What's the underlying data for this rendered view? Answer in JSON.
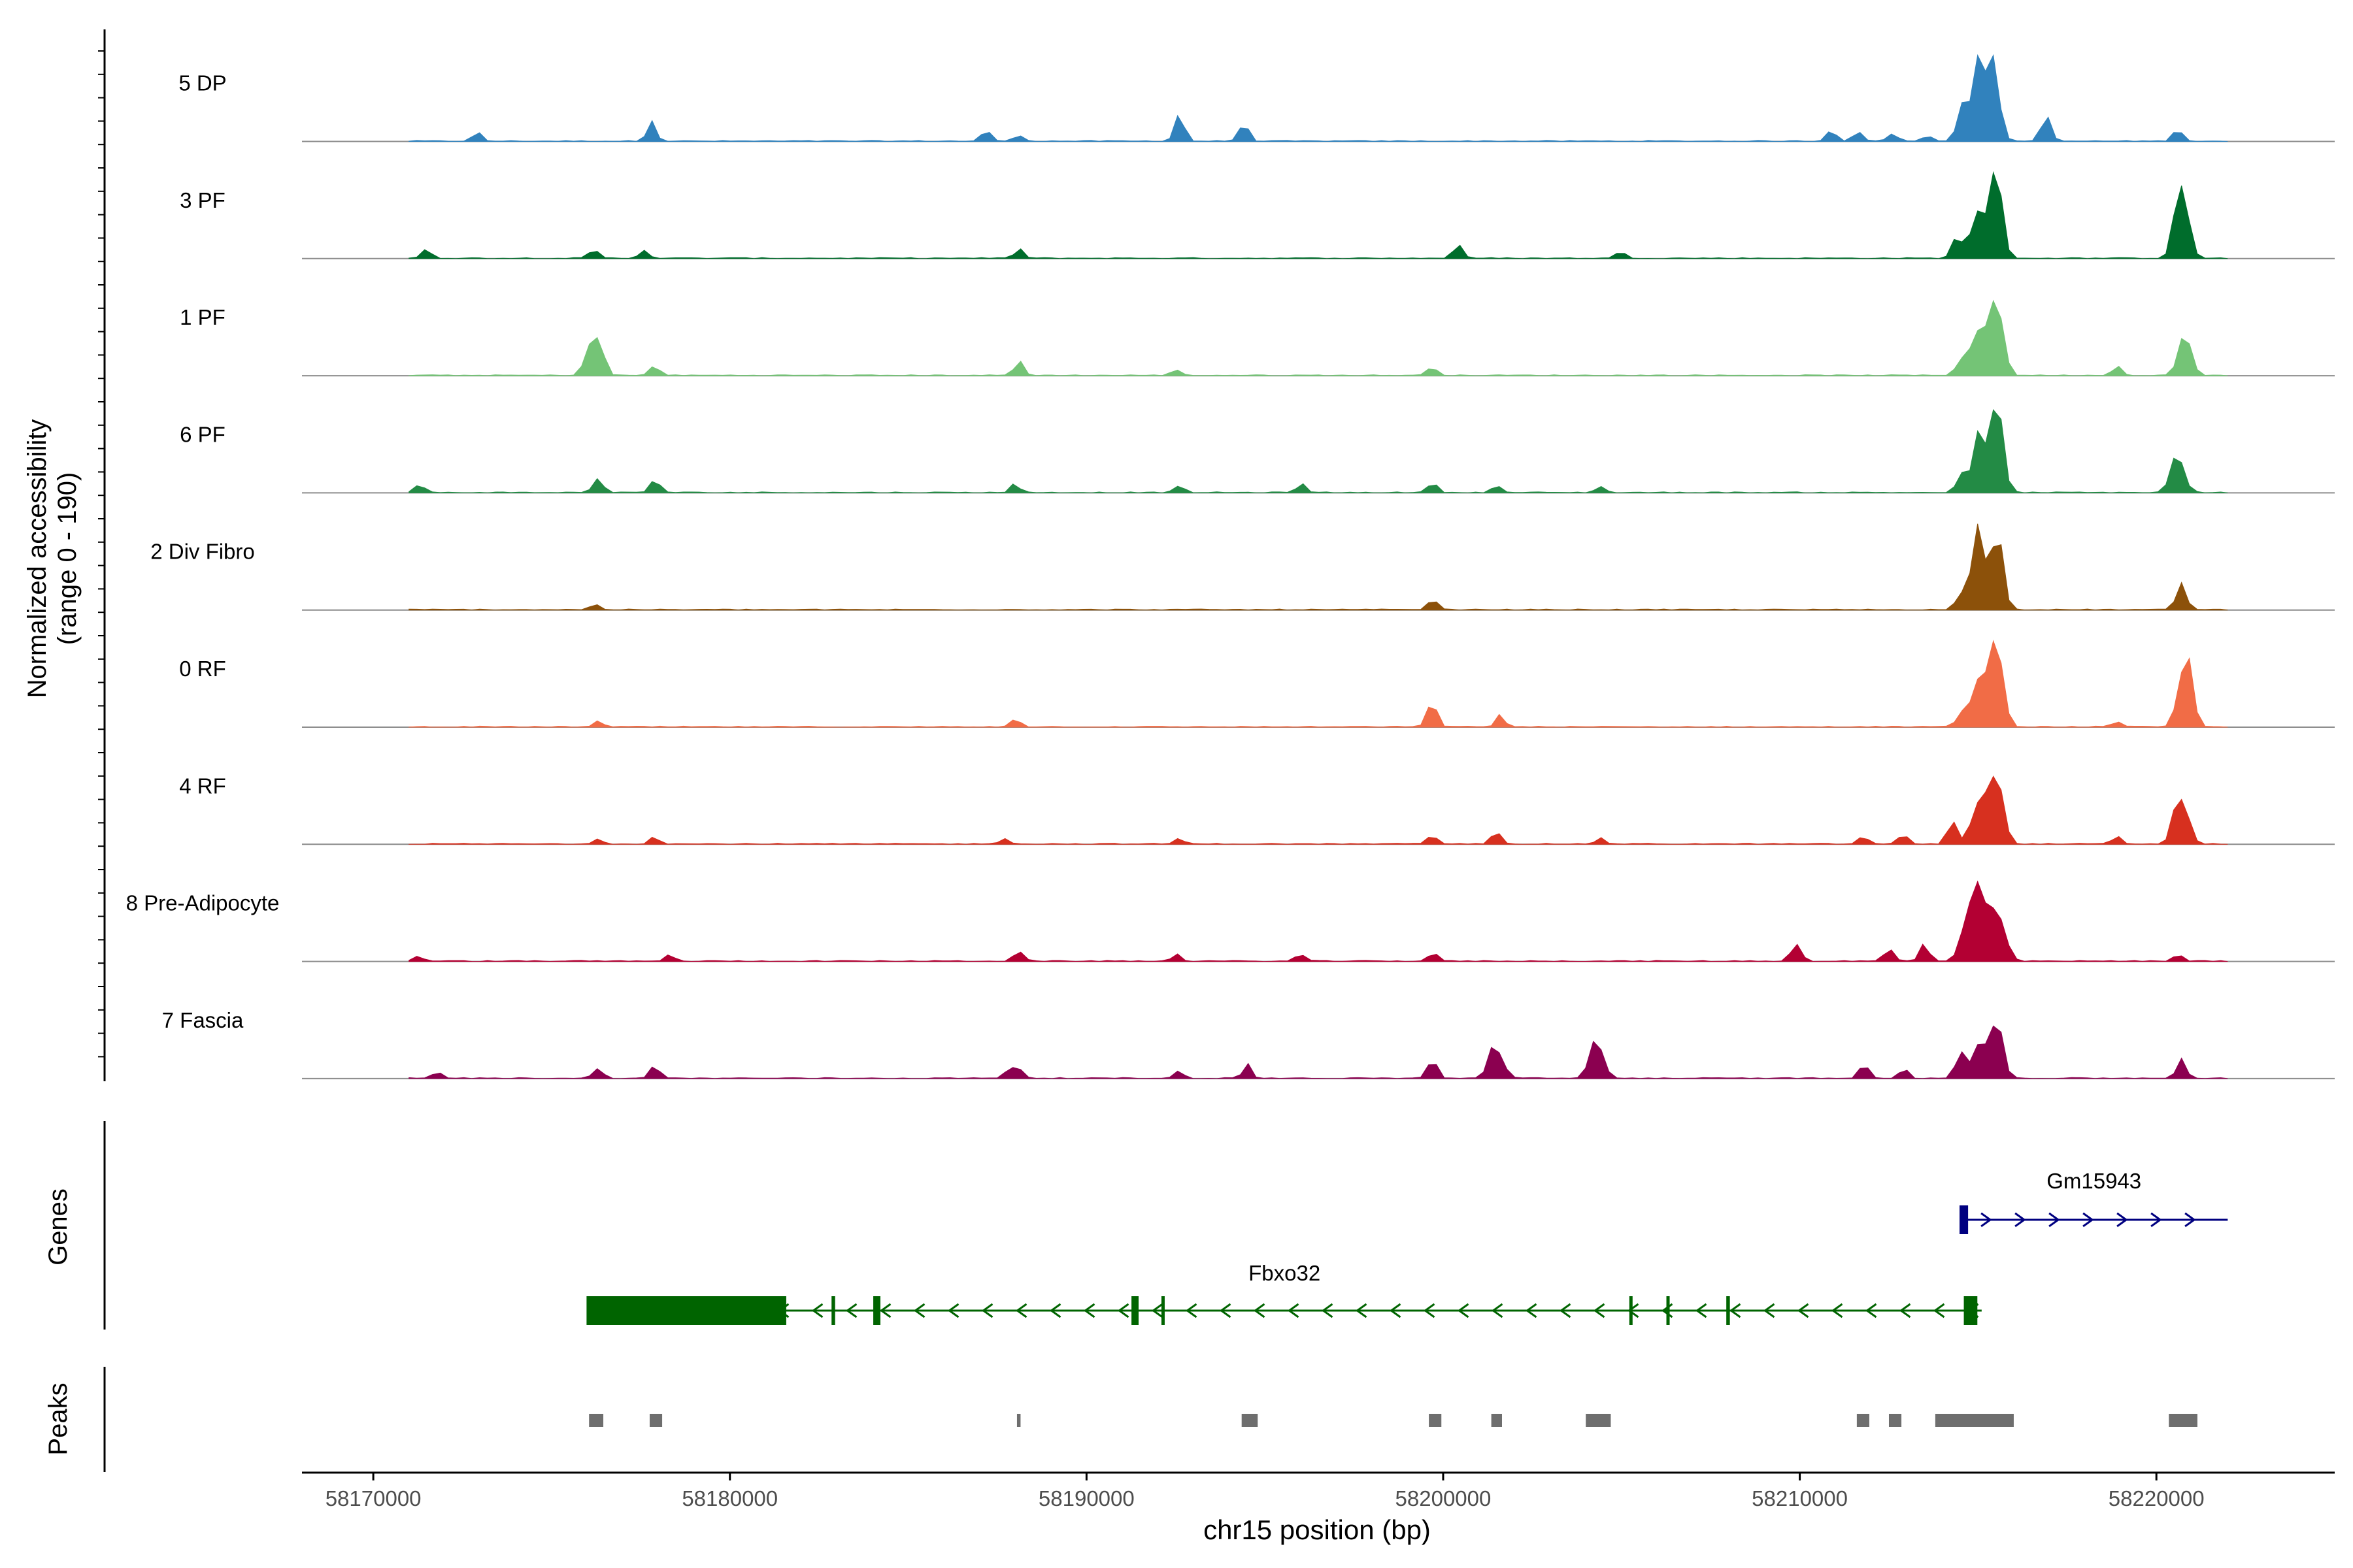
{
  "chart_data": {
    "type": "area",
    "ylabel_line1": "Normalized accessibility",
    "ylabel_line2": "(range 0 - 190)",
    "ylim": [
      0,
      190
    ],
    "xlabel": "chr15 position (bp)",
    "xlim": [
      58168000,
      58225000
    ],
    "data_xlim": [
      58171000,
      58222000
    ],
    "xticks": [
      {
        "value": 58170000,
        "label": "58170000"
      },
      {
        "value": 58180000,
        "label": "58180000"
      },
      {
        "value": 58190000,
        "label": "58190000"
      },
      {
        "value": 58200000,
        "label": "58200000"
      },
      {
        "value": 58210000,
        "label": "58210000"
      },
      {
        "value": 58220000,
        "label": "58220000"
      }
    ],
    "series": [
      {
        "name": "5 DP",
        "color": "#3182bd",
        "peaks": [
          [
            58172900,
            10
          ],
          [
            58177800,
            24
          ],
          [
            58187200,
            12
          ],
          [
            58188100,
            8
          ],
          [
            58192600,
            34
          ],
          [
            58194400,
            26
          ],
          [
            58210900,
            14
          ],
          [
            58211600,
            12
          ],
          [
            58212600,
            12
          ],
          [
            58213600,
            8
          ],
          [
            58214500,
            38
          ],
          [
            58215000,
            96
          ],
          [
            58215400,
            100
          ],
          [
            58216900,
            32
          ],
          [
            58220600,
            18
          ]
        ]
      },
      {
        "name": "3 PF",
        "color": "#006d2c",
        "peaks": [
          [
            58171500,
            10
          ],
          [
            58176200,
            12
          ],
          [
            58177600,
            10
          ],
          [
            58188100,
            10
          ],
          [
            58200400,
            16
          ],
          [
            58205000,
            8
          ],
          [
            58214400,
            26
          ],
          [
            58215000,
            72
          ],
          [
            58215500,
            100
          ],
          [
            58220700,
            86
          ]
        ]
      },
      {
        "name": "1 PF",
        "color": "#74c476",
        "peaks": [
          [
            58176200,
            66
          ],
          [
            58177900,
            12
          ],
          [
            58188100,
            16
          ],
          [
            58192500,
            6
          ],
          [
            58199700,
            10
          ],
          [
            58214500,
            18
          ],
          [
            58215000,
            66
          ],
          [
            58215500,
            100
          ],
          [
            58218900,
            10
          ],
          [
            58220800,
            44
          ]
        ]
      },
      {
        "name": "6 PF",
        "color": "#238b45",
        "peaks": [
          [
            58171300,
            10
          ],
          [
            58176300,
            18
          ],
          [
            58177900,
            16
          ],
          [
            58188000,
            10
          ],
          [
            58192600,
            8
          ],
          [
            58196000,
            10
          ],
          [
            58199700,
            14
          ],
          [
            58201500,
            10
          ],
          [
            58204400,
            8
          ],
          [
            58214500,
            18
          ],
          [
            58215000,
            66
          ],
          [
            58215500,
            100
          ],
          [
            58220600,
            44
          ]
        ]
      },
      {
        "name": "2 Div Fibro",
        "color": "#8c510a",
        "peaks": [
          [
            58176200,
            8
          ],
          [
            58199700,
            12
          ],
          [
            58214500,
            16
          ],
          [
            58215000,
            84
          ],
          [
            58215500,
            100
          ],
          [
            58220700,
            38
          ]
        ]
      },
      {
        "name": "0 RF",
        "color": "#f16c46",
        "peaks": [
          [
            58176300,
            6
          ],
          [
            58188000,
            10
          ],
          [
            58199700,
            30
          ],
          [
            58201600,
            14
          ],
          [
            58214500,
            18
          ],
          [
            58215000,
            58
          ],
          [
            58215500,
            100
          ],
          [
            58218900,
            6
          ],
          [
            58220800,
            86
          ]
        ]
      },
      {
        "name": "4 RF",
        "color": "#d7301f",
        "peaks": [
          [
            58176300,
            8
          ],
          [
            58177900,
            10
          ],
          [
            58187700,
            8
          ],
          [
            58192600,
            6
          ],
          [
            58199700,
            14
          ],
          [
            58201500,
            18
          ],
          [
            58204400,
            8
          ],
          [
            58211800,
            10
          ],
          [
            58212900,
            14
          ],
          [
            58214300,
            34
          ],
          [
            58215000,
            62
          ],
          [
            58215500,
            100
          ],
          [
            58218900,
            8
          ],
          [
            58220700,
            68
          ]
        ]
      },
      {
        "name": "8 Pre-Adipocyte",
        "color": "#b30033",
        "peaks": [
          [
            58171300,
            6
          ],
          [
            58178300,
            8
          ],
          [
            58188100,
            12
          ],
          [
            58192500,
            8
          ],
          [
            58196000,
            10
          ],
          [
            58199700,
            10
          ],
          [
            58209900,
            22
          ],
          [
            58212500,
            14
          ],
          [
            58213500,
            26
          ],
          [
            58214700,
            60
          ],
          [
            58215100,
            100
          ],
          [
            58215600,
            52
          ],
          [
            58220600,
            8
          ]
        ]
      },
      {
        "name": "7 Fascia",
        "color": "#8b0050",
        "peaks": [
          [
            58171800,
            8
          ],
          [
            58176300,
            12
          ],
          [
            58177900,
            18
          ],
          [
            58187800,
            12
          ],
          [
            58188100,
            14
          ],
          [
            58192600,
            8
          ],
          [
            58194500,
            16
          ],
          [
            58199700,
            22
          ],
          [
            58201500,
            44
          ],
          [
            58204300,
            58
          ],
          [
            58211800,
            20
          ],
          [
            58212900,
            12
          ],
          [
            58214500,
            28
          ],
          [
            58215000,
            50
          ],
          [
            58215500,
            72
          ],
          [
            58220700,
            22
          ]
        ]
      }
    ],
    "genes_label": "Genes",
    "genes": [
      {
        "name": "Gm15943",
        "color": "#000080",
        "start": 58214500,
        "end": 58222000,
        "strand": "+",
        "exons": [
          [
            58214480,
            58214720
          ]
        ]
      },
      {
        "name": "Fbxo32",
        "color": "#006400",
        "start": 58176000,
        "end": 58215100,
        "strand": "-",
        "exons": [
          [
            58175980,
            58181580
          ],
          [
            58182850,
            58182950
          ],
          [
            58184020,
            58184220
          ],
          [
            58191260,
            58191460
          ],
          [
            58192100,
            58192180
          ],
          [
            58205220,
            58205300
          ],
          [
            58206260,
            58206340
          ],
          [
            58207940,
            58208040
          ],
          [
            58214600,
            58214980
          ]
        ]
      }
    ],
    "peaks_label": "Peaks",
    "peak_regions": [
      [
        58176050,
        58176450
      ],
      [
        58177750,
        58178100
      ],
      [
        58188050,
        58188150
      ],
      [
        58194350,
        58194800
      ],
      [
        58199600,
        58199950
      ],
      [
        58201350,
        58201650
      ],
      [
        58204000,
        58204700
      ],
      [
        58211600,
        58211950
      ],
      [
        58212500,
        58212850
      ],
      [
        58213800,
        58216000
      ],
      [
        58220350,
        58221150
      ]
    ]
  }
}
